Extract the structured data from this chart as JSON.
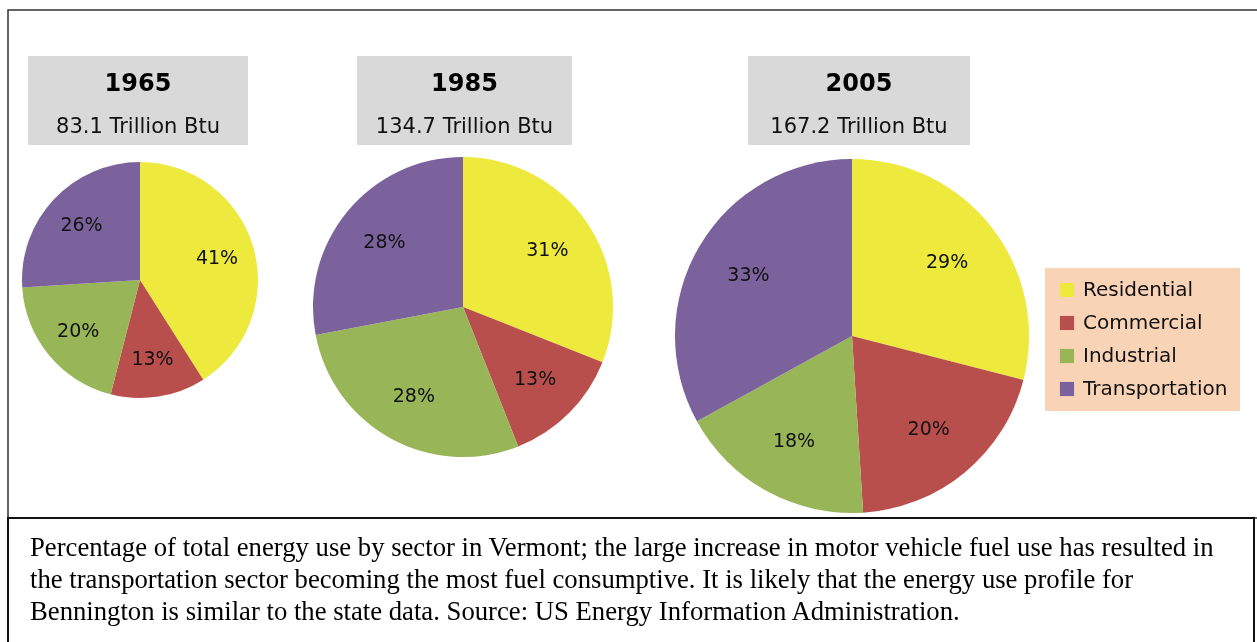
{
  "chart_data": [
    {
      "type": "pie",
      "title": "1965",
      "subtitle": "83.1 Trillion Btu",
      "categories": [
        "Residential",
        "Commercial",
        "Industrial",
        "Transportation"
      ],
      "values": [
        41,
        13,
        20,
        26
      ],
      "colors": [
        "#ede93d",
        "#b94f4c",
        "#98b558",
        "#7b629d"
      ],
      "value_labels": [
        "41%",
        "13%",
        "20%",
        "26%"
      ],
      "legend": "right"
    },
    {
      "type": "pie",
      "title": "1985",
      "subtitle": "134.7 Trillion Btu",
      "categories": [
        null,
        null,
        null,
        null
      ],
      "values": [
        31,
        13,
        28,
        28
      ],
      "colors": [
        "#ede93d",
        "#b94f4c",
        "#98b558",
        "#7b629d"
      ],
      "value_labels": [
        "31%",
        "13%",
        "28%",
        "28%"
      ]
    },
    {
      "type": "pie",
      "title": "2005",
      "subtitle": "167.2 Trillion Btu",
      "categories": [
        null,
        null,
        null,
        null
      ],
      "values": [
        29,
        20,
        18,
        33
      ],
      "colors": [
        "#ede93d",
        "#b94f4c",
        "#98b558",
        "#7b629d"
      ],
      "value_labels": [
        "29%",
        "20%",
        "18%",
        "33%"
      ],
      "annotations": [
        "Percentage of total energy use by sector in Vermont; the large increase in motor vehicle fuel use has resulted in the transportation sector becoming the most fuel consumptive. It is likely that the energy use profile for Bennington is similar to the state data. Source: US Energy Information Administration."
      ]
    }
  ]
}
